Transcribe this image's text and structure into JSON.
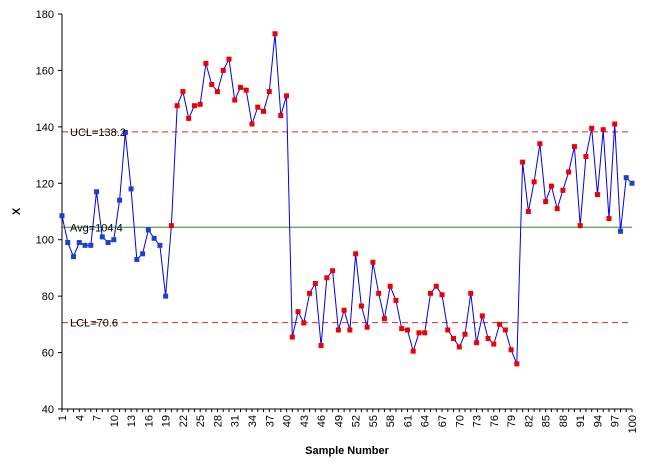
{
  "chart_data": {
    "type": "line",
    "title": "",
    "xlabel": "Sample Number",
    "ylabel": "X",
    "ylim": [
      40,
      180
    ],
    "yticks": [
      40,
      60,
      80,
      100,
      120,
      140,
      160,
      180
    ],
    "xlim": [
      1,
      100
    ],
    "xtick_labels": [
      "1",
      "4",
      "7",
      "10",
      "13",
      "16",
      "19",
      "22",
      "25",
      "28",
      "31",
      "34",
      "37",
      "40",
      "43",
      "46",
      "49",
      "52",
      "55",
      "58",
      "61",
      "64",
      "67",
      "70",
      "73",
      "76",
      "79",
      "82",
      "85",
      "88",
      "91",
      "94",
      "97",
      "100"
    ],
    "grid": false,
    "legend": "none",
    "control_limits": {
      "ucl": {
        "value": 138.2,
        "label": "UCL=138.2"
      },
      "avg": {
        "value": 104.4,
        "label": "Avg=104.4"
      },
      "lcl": {
        "value": 70.6,
        "label": "LCL=70.6"
      }
    },
    "colors": {
      "line": "#0000ee",
      "in_control_marker": "#1f3fd0",
      "out_of_control_marker": "#ee0000",
      "ucl_lcl": "#d62728",
      "avg": "#2e8b2e",
      "axis": "#000000"
    },
    "x": [
      1,
      2,
      3,
      4,
      5,
      6,
      7,
      8,
      9,
      10,
      11,
      12,
      13,
      14,
      15,
      16,
      17,
      18,
      19,
      20,
      21,
      22,
      23,
      24,
      25,
      26,
      27,
      28,
      29,
      30,
      31,
      32,
      33,
      34,
      35,
      36,
      37,
      38,
      39,
      40,
      41,
      42,
      43,
      44,
      45,
      46,
      47,
      48,
      49,
      50,
      51,
      52,
      53,
      54,
      55,
      56,
      57,
      58,
      59,
      60,
      61,
      62,
      63,
      64,
      65,
      66,
      67,
      68,
      69,
      70,
      71,
      72,
      73,
      74,
      75,
      76,
      77,
      78,
      79,
      80,
      81,
      82,
      83,
      84,
      85,
      86,
      87,
      88,
      89,
      90,
      91,
      92,
      93,
      94,
      95,
      96,
      97,
      98,
      99,
      100
    ],
    "values": [
      108.5,
      99,
      94,
      99,
      98,
      98,
      117,
      101,
      99,
      100,
      114,
      138,
      118,
      93,
      95,
      103.5,
      100.5,
      98,
      80,
      105,
      147.5,
      152.5,
      143,
      147.5,
      148,
      162.5,
      155,
      152.5,
      160,
      164,
      149.5,
      154,
      153,
      141,
      147,
      145.5,
      152.5,
      173,
      144,
      151,
      65.5,
      74.5,
      70.5,
      81,
      84.5,
      62.5,
      86.5,
      89,
      68,
      75,
      68,
      95,
      76.5,
      69,
      92,
      81,
      72,
      83.5,
      78.5,
      68.5,
      68,
      60.5,
      67,
      67,
      81,
      83.5,
      80.5,
      68,
      65,
      62,
      66.5,
      81,
      63.5,
      73,
      65,
      63,
      70,
      68,
      61,
      56,
      127.5,
      110,
      120.5,
      134,
      113.5,
      119,
      111,
      117.5,
      124,
      133,
      105,
      129.5,
      139.5,
      116,
      139,
      107.5,
      141,
      103,
      122,
      120
    ],
    "out_of_control": [
      20,
      21,
      22,
      23,
      24,
      25,
      26,
      27,
      28,
      29,
      30,
      31,
      32,
      33,
      34,
      35,
      36,
      37,
      38,
      39,
      40,
      41,
      42,
      43,
      44,
      45,
      46,
      47,
      48,
      49,
      50,
      51,
      52,
      53,
      54,
      55,
      56,
      57,
      58,
      59,
      60,
      61,
      62,
      63,
      64,
      65,
      66,
      67,
      68,
      69,
      70,
      71,
      72,
      73,
      74,
      75,
      76,
      77,
      78,
      79,
      80,
      81,
      82,
      83,
      84,
      85,
      86,
      87,
      88,
      89,
      90,
      91,
      92,
      93,
      94,
      95,
      96,
      97
    ]
  }
}
